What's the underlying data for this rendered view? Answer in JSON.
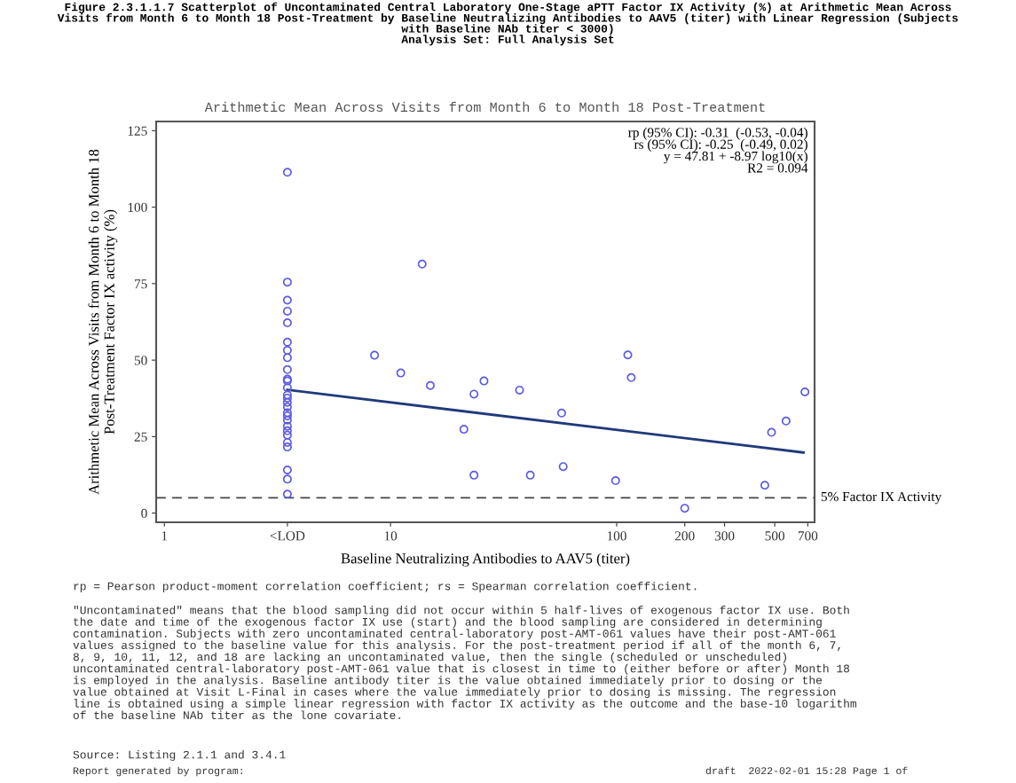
{
  "chart_data": {
    "type": "scatter",
    "title": "Figure 2.3.1.1.7 Scatterplot of Uncontaminated Central Laboratory One-Stage aPTT Factor IX Activity (%) at Arithmetic Mean Across\nVisits from Month 6 to Month 18 Post-Treatment by Baseline Neutralizing Antibodies to AAV5 (titer) with Linear Regression (Subjects\nwith Baseline NAb titer < 3000)\nAnalysis Set: Full Analysis Set",
    "subtitle": "Arithmetic Mean Across Visits from Month 6 to Month 18 Post-Treatment",
    "xlabel": "Baseline Neutralizing Antibodies to AAV5 (titer)",
    "ylabel": "Arithmetic Mean Across Visits from Month 6 to Month 18\nPost-Treatment Factor IX activity (%)",
    "log": "x",
    "xlim": [
      0.92,
      750
    ],
    "xticks": [
      1,
      {
        "value": 3.5,
        "label": "<LOD"
      },
      10,
      100,
      200,
      300,
      500,
      700
    ],
    "ylim": [
      -3,
      128
    ],
    "yticks": [
      0,
      25,
      50,
      75,
      100,
      125
    ],
    "grid": false,
    "legend": false,
    "marker": "circle",
    "series": [
      {
        "color": "#5a5ae6",
        "x": [
          3.5,
          3.5,
          3.5,
          3.5,
          3.5,
          3.5,
          3.5,
          3.5,
          3.5,
          3.5,
          3.5,
          3.5,
          3.5,
          3.5,
          3.5,
          3.5,
          3.5,
          3.5,
          3.5,
          3.5,
          3.5,
          3.5,
          3.5,
          3.5,
          3.5,
          3.5,
          3.5,
          8.5,
          11.1,
          13.8,
          15.0,
          21.1,
          23.4,
          23.4,
          25.9,
          37.2,
          41.5,
          57.1,
          58.0,
          98.9,
          112,
          116,
          200,
          452,
          484,
          561,
          680
        ],
        "values": [
          111.4,
          75.5,
          69.6,
          66.0,
          62.2,
          55.9,
          53.2,
          50.8,
          46.9,
          43.8,
          43.2,
          41.0,
          38.6,
          37.6,
          36.2,
          34.7,
          32.8,
          31.8,
          30.4,
          28.4,
          26.9,
          25.5,
          23.1,
          21.6,
          14.1,
          11.1,
          6.2,
          51.6,
          45.8,
          81.4,
          41.7,
          27.4,
          38.9,
          12.4,
          43.2,
          40.2,
          12.4,
          32.7,
          15.2,
          10.6,
          51.7,
          44.3,
          1.6,
          9.1,
          26.4,
          30.1,
          39.6
        ]
      },
      {
        "type": "line",
        "color": "#1f3a7a",
        "marker": "none",
        "line_style": "solid",
        "x": [
          3.5,
          670
        ],
        "values": [
          40.3,
          19.8
        ]
      }
    ],
    "ref_lines": [
      {
        "axis": "y",
        "value": 5,
        "label": "5% Factor IX Activity",
        "color": "#444444",
        "line_style": "dashed"
      }
    ],
    "annotations": [
      "rp (95% CI): -0.31  (-0.53, -0.04)\nrs (95% CI): -0.25  (-0.49, 0.02)\ny = 47.81 + -8.97 log10(x)\nR2 = 0.094",
      "rp = Pearson product-moment correlation coefficient; rs = Spearman correlation coefficient.",
      "\"Uncontaminated\" means that the blood sampling did not occur within 5 half-lives of exogenous factor IX use. Both\nthe date and time of the exogenous factor IX use (start) and the blood sampling are considered in determining\ncontamination. Subjects with zero uncontaminated central-laboratory post-AMT-061 values have their post-AMT-061\nvalues assigned to the baseline value for this analysis. For the post-treatment period if all of the month 6, 7,\n8, 9, 10, 11, 12, and 18 are lacking an uncontaminated value, then the single (scheduled or unscheduled)\nuncontaminated central-laboratory post-AMT-061 value that is closest in time to (either before or after) Month 18\nis employed in the analysis. Baseline antibody titer is the value obtained immediately prior to dosing or the\nvalue obtained at Visit L-Final in cases where the value immediately prior to dosing is missing. The regression\nline is obtained using a simple linear regression with factor IX activity as the outcome and the base-10 logarithm\nof the baseline NAb titer as the lone covariate.",
      "Source: Listing 2.1.1 and 3.4.1",
      "Report generated by program:",
      "draft  2022-02-01 15:28 Page 1 of"
    ]
  }
}
